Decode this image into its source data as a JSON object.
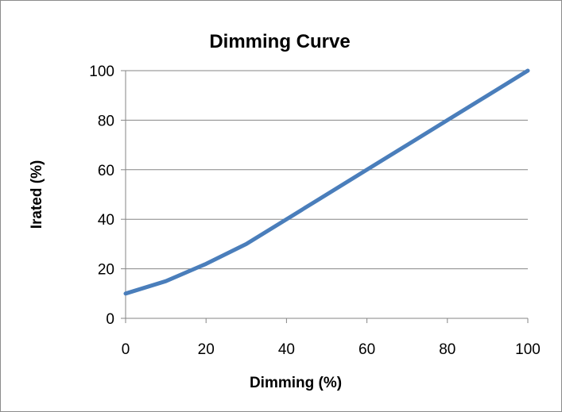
{
  "chart_data": {
    "type": "line",
    "title": "Dimming Curve",
    "xlabel": "Dimming (%)",
    "ylabel": "Irated (%)",
    "xlim": [
      0,
      100
    ],
    "ylim": [
      0,
      100
    ],
    "xticks": [
      0,
      20,
      40,
      60,
      80,
      100
    ],
    "yticks": [
      0,
      20,
      40,
      60,
      80,
      100
    ],
    "grid": "horizontal",
    "legend": "none",
    "series": [
      {
        "color": "#4a7ebb",
        "x": [
          0,
          10,
          20,
          30,
          40,
          50,
          60,
          70,
          80,
          90,
          100
        ],
        "y": [
          10,
          15,
          22,
          30,
          40,
          50,
          60,
          70,
          80,
          90,
          100
        ]
      }
    ]
  }
}
